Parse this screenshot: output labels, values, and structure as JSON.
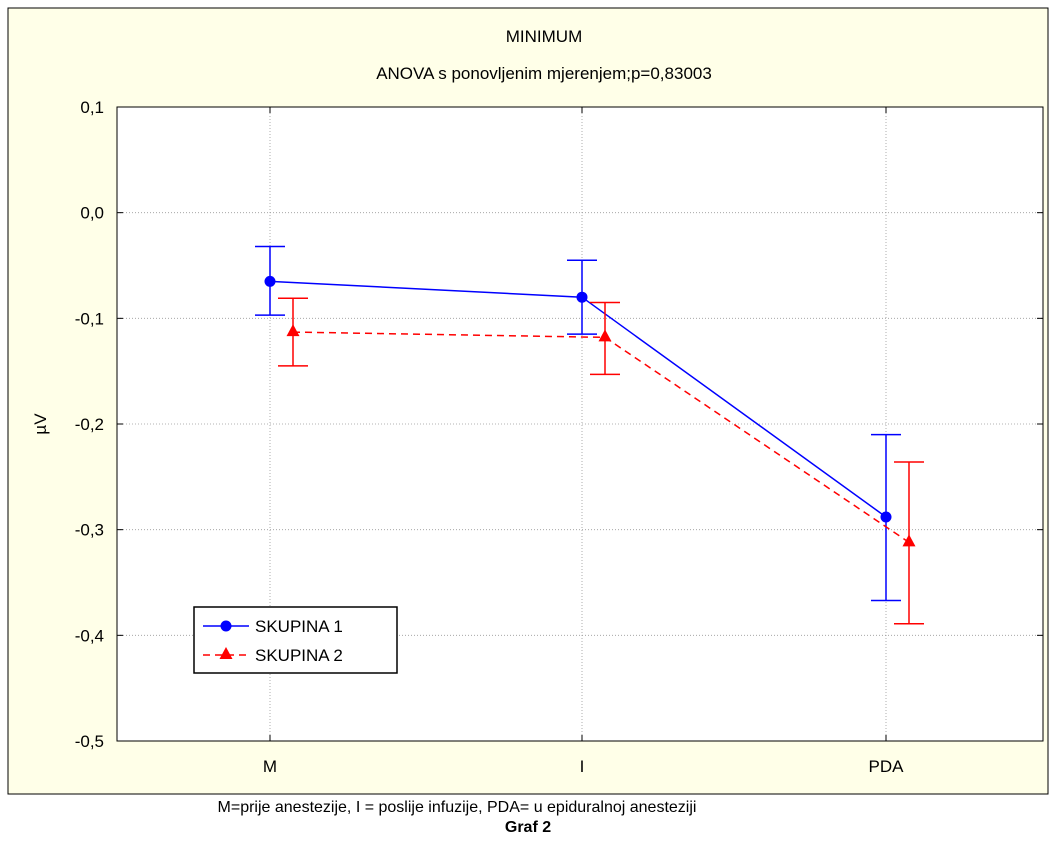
{
  "chart_data": {
    "type": "line",
    "title": "MINIMUM",
    "subtitle": "ANOVA s ponovljenim mjerenjem;p=0,83003",
    "xlabel": "",
    "ylabel": "µV",
    "categories": [
      "M",
      "I",
      "PDA"
    ],
    "ylim": [
      -0.5,
      0.1
    ],
    "yticks": [
      0.1,
      0.0,
      -0.1,
      -0.2,
      -0.3,
      -0.4,
      -0.5
    ],
    "ytick_labels": [
      "0,1",
      "0,0",
      "-0,1",
      "-0,2",
      "-0,3",
      "-0,4",
      "-0,5"
    ],
    "grid": true,
    "legend_position": "bottom-left",
    "series": [
      {
        "name": "SKUPINA 1",
        "color": "#0000ff",
        "marker": "circle",
        "line_style": "solid",
        "values": [
          -0.065,
          -0.08,
          -0.288
        ],
        "error_low": [
          -0.097,
          -0.115,
          -0.367
        ],
        "error_high": [
          -0.032,
          -0.045,
          -0.21
        ]
      },
      {
        "name": "SKUPINA 2",
        "color": "#ff0000",
        "marker": "triangle",
        "line_style": "dashed",
        "values": [
          -0.113,
          -0.118,
          -0.312
        ],
        "error_low": [
          -0.145,
          -0.153,
          -0.389
        ],
        "error_high": [
          -0.081,
          -0.085,
          -0.236
        ]
      }
    ]
  },
  "caption": "M=prije anestezije, I = poslije infuzije, PDA= u epiduralnoj anesteziji",
  "figure_label": "Graf 2"
}
